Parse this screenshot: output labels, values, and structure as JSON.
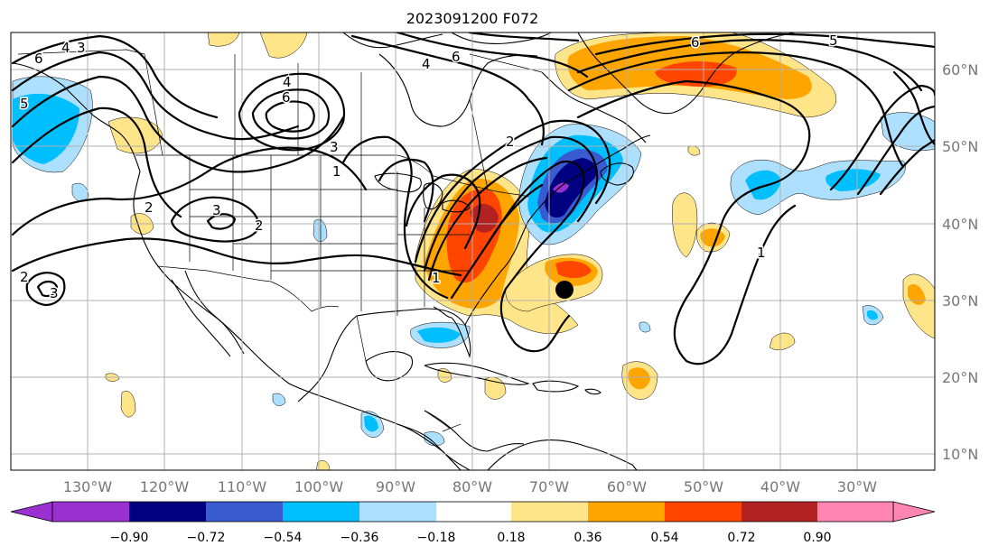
{
  "title": "2023091200 F072",
  "lon_ticks": [
    "130°W",
    "120°W",
    "110°W",
    "100°W",
    "90°W",
    "80°W",
    "70°W",
    "60°W",
    "50°W",
    "40°W",
    "30°W"
  ],
  "lat_ticks": [
    "60°N",
    "50°N",
    "40°N",
    "30°N",
    "20°N",
    "10°N"
  ],
  "colorbar": {
    "ticks": [
      "−0.90",
      "−0.72",
      "−0.54",
      "−0.36",
      "−0.18",
      "0.18",
      "0.36",
      "0.54",
      "0.72",
      "0.90"
    ],
    "colors": [
      "#9b30d0",
      "#000080",
      "#3a5bd0",
      "#00bfff",
      "#ade0ff",
      "#ffffff",
      "#ffe58a",
      "#ffa500",
      "#ff4500",
      "#b22222",
      "#ff85b3"
    ]
  },
  "marker": {
    "label": "storm-center",
    "lon": -68,
    "lat": 31.5
  },
  "contour_labels": [
    "6",
    "4",
    "3",
    "5",
    "4",
    "6",
    "2",
    "1",
    "2",
    "3",
    "2",
    "3",
    "2",
    "1",
    "6",
    "5",
    "6",
    "1",
    "4",
    "3"
  ]
}
